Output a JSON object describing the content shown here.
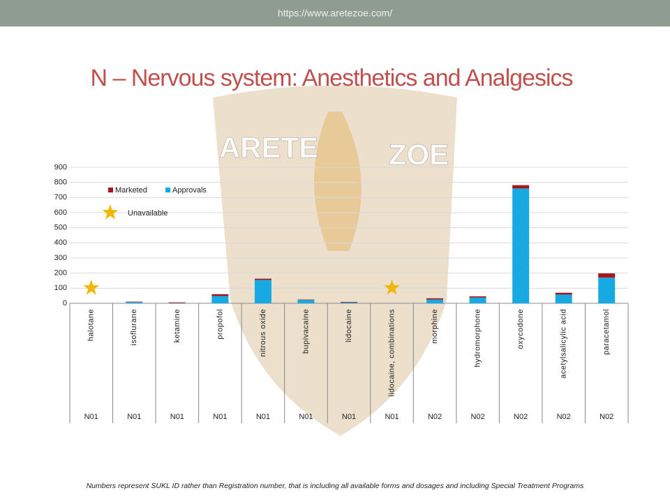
{
  "header": {
    "url": "https://www.aretezoe.com/"
  },
  "title": "N – Nervous system: Anesthetics  and Analgesics",
  "watermark": {
    "left": "ARETE",
    "right": "ZOE"
  },
  "footnote": "Numbers represent SUKL ID rather than Registration number, that is including all available forms and dosages and including Special Treatment Programs",
  "chart_data": {
    "type": "stacked-bar",
    "categories": [
      "halotane",
      "isoflurane",
      "ketamine",
      "propofol",
      "nitrous oxide",
      "bupivacaine",
      "lidocaine",
      "lidocaine, combinations",
      "morphine",
      "hydromorphone",
      "oxycodone",
      "acetylsalicylic acid",
      "paracetamol"
    ],
    "groups": [
      "N01",
      "N01",
      "N01",
      "N01",
      "N01",
      "N01",
      "N01",
      "N01",
      "N02",
      "N02",
      "N02",
      "N02",
      "N02"
    ],
    "series": [
      {
        "name": "Approvals",
        "color": "#17a9e1",
        "values": [
          null,
          8,
          2,
          48,
          155,
          22,
          5,
          null,
          25,
          38,
          760,
          58,
          170
        ]
      },
      {
        "name": "Marketed",
        "color": "#a5171c",
        "values": [
          null,
          3,
          4,
          12,
          8,
          3,
          4,
          null,
          8,
          8,
          22,
          12,
          28
        ]
      }
    ],
    "unavailable": [
      true,
      false,
      false,
      false,
      false,
      false,
      false,
      true,
      false,
      false,
      false,
      false,
      false
    ],
    "unavailable_label": "Unavailable",
    "star_color": "#f2b705",
    "ylim": [
      0,
      900
    ],
    "yticks": [
      0,
      100,
      200,
      300,
      400,
      500,
      600,
      700,
      800,
      900
    ],
    "grid": true
  }
}
